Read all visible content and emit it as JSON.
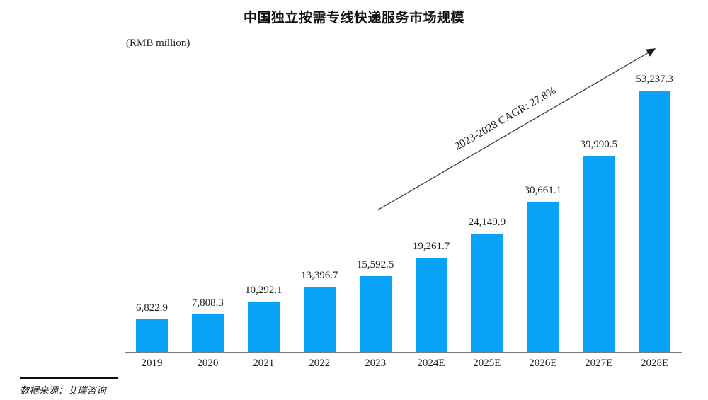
{
  "title": "中国独立按需专线快递服务市场规模",
  "unit_label": "(RMB million)",
  "annotation": "2023-2028 CAGR: 27.8%",
  "source": "数据来源：艾瑞咨询",
  "colors": {
    "bar": "#0aa2f6",
    "axis": "#7a7a7a",
    "arrow": "#3c3c3c",
    "text": "#1f1f1f"
  },
  "chart_data": {
    "type": "bar",
    "title": "中国独立按需专线快递服务市场规模",
    "xlabel": "",
    "ylabel": "(RMB million)",
    "ylim": [
      0,
      55000
    ],
    "grid": false,
    "legend": "none",
    "categories": [
      "2019",
      "2020",
      "2021",
      "2022",
      "2023",
      "2024E",
      "2025E",
      "2026E",
      "2027E",
      "2028E"
    ],
    "values": [
      6822.9,
      7808.3,
      10292.1,
      13396.7,
      15592.5,
      19261.7,
      24149.9,
      30661.1,
      39990.5,
      53237.3
    ],
    "value_labels": [
      "6,822.9",
      "7,808.3",
      "10,292.1",
      "13,396.7",
      "15,592.5",
      "19,261.7",
      "24,149.9",
      "30,661.1",
      "39,990.5",
      "53,237.3"
    ],
    "annotation": "2023-2028 CAGR: 27.8%"
  }
}
